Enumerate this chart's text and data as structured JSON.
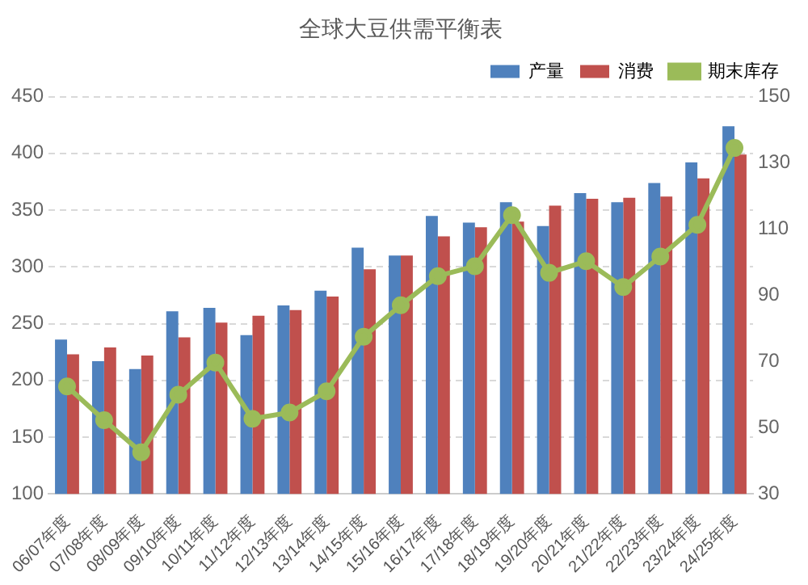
{
  "chart_data": {
    "type": "bar",
    "title": "全球大豆供需平衡表",
    "categories": [
      "06/07年度",
      "07/08年度",
      "08/09年度",
      "09/10年度",
      "10/11年度",
      "11/12年度",
      "12/13年度",
      "13/14年度",
      "14/15年度",
      "15/16年度",
      "16/17年度",
      "17/18年度",
      "18/19年度",
      "19/20年度",
      "20/21年度",
      "21/22年度",
      "22/23年度",
      "23/24年度",
      "24/25年度"
    ],
    "series": [
      {
        "name": "产量",
        "color": "#4f81bd",
        "values": [
          236,
          217,
          210,
          261,
          264,
          240,
          266,
          279,
          317,
          310,
          345,
          339,
          357,
          336,
          365,
          357,
          374,
          392,
          424
        ]
      },
      {
        "name": "消费",
        "color": "#c0504d",
        "values": [
          223,
          229,
          222,
          238,
          251,
          257,
          262,
          274,
          298,
          310,
          327,
          335,
          340,
          354,
          360,
          361,
          362,
          378,
          399
        ]
      },
      {
        "name": "期末库存",
        "type": "line",
        "axis": "y2",
        "color": "#9bbb59",
        "values": [
          62.5,
          52.3,
          42.6,
          60,
          69.7,
          52.7,
          54.6,
          61,
          77.5,
          87,
          95.8,
          98.8,
          114.2,
          96.8,
          100.3,
          92.5,
          101.7,
          111.3,
          134.5
        ]
      }
    ],
    "ylim": [
      100,
      450
    ],
    "yticks": [
      100,
      150,
      200,
      250,
      300,
      350,
      400,
      450
    ],
    "y2lim": [
      30,
      150
    ],
    "y2ticks": [
      30,
      50,
      70,
      90,
      110,
      130,
      150
    ],
    "grid": "y",
    "legend": "top right",
    "marker": "circle",
    "line_style": "solid"
  }
}
